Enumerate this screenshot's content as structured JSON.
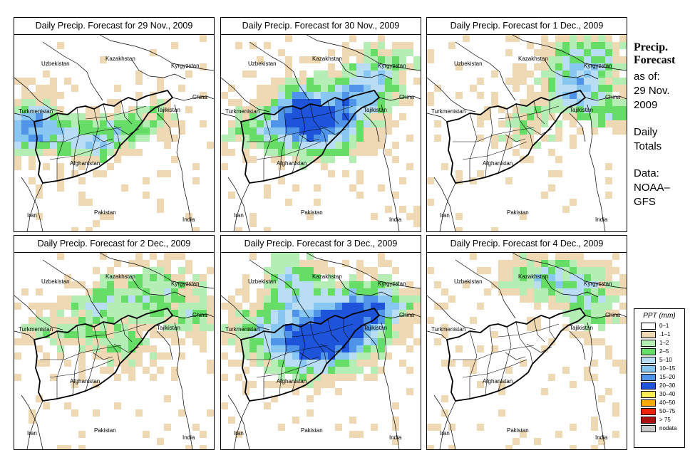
{
  "panels": [
    {
      "title": "Daily Precip. Forecast for  29 Nov., 2009",
      "pattern": "west"
    },
    {
      "title": "Daily Precip. Forecast for  30 Nov., 2009",
      "pattern": "central"
    },
    {
      "title": "Daily Precip. Forecast for  1 Dec., 2009",
      "pattern": "northeast"
    },
    {
      "title": "Daily Precip. Forecast for  2 Dec., 2009",
      "pattern": "north-light"
    },
    {
      "title": "Daily Precip. Forecast for  3 Dec., 2009",
      "pattern": "central-heavy"
    },
    {
      "title": "Daily Precip. Forecast for  4 Dec., 2009",
      "pattern": "northeast-light"
    }
  ],
  "map_labels": {
    "uzbekistan": "Uzbekistan",
    "kazakhstan": "Kazakhstan",
    "kyrgyzstan": "Kyrgyzstan",
    "china": "China",
    "tajikistan": "Tajikistan",
    "turkmenistan": "Turkmenistan",
    "afghanistan": "Afghanistan",
    "iran": "Iran",
    "pakistan": "Pakistan",
    "india": "India"
  },
  "side": {
    "title_line1": "Precip.",
    "title_line2": "Forecast",
    "asof_line1": "as of:",
    "asof_line2": "29 Nov.",
    "asof_line3": "2009",
    "totals_line1": "Daily",
    "totals_line2": "Totals",
    "data_line1": "Data:",
    "data_line2": "NOAA–",
    "data_line3": "GFS"
  },
  "legend": {
    "title": "PPT (mm)",
    "items": [
      {
        "label": "0–1",
        "color": "#ffffff"
      },
      {
        "label": ".1–1",
        "color": "#efd9b4"
      },
      {
        "label": "1–2",
        "color": "#b4eeb4"
      },
      {
        "label": "2–5",
        "color": "#66dd66"
      },
      {
        "label": "5–10",
        "color": "#b8ddf5"
      },
      {
        "label": "10–15",
        "color": "#87c7f2"
      },
      {
        "label": "15–20",
        "color": "#4f94e8"
      },
      {
        "label": "20–30",
        "color": "#1e54d9"
      },
      {
        "label": "30–40",
        "color": "#ffee55"
      },
      {
        "label": "40–50",
        "color": "#ffaa00"
      },
      {
        "label": "50–75",
        "color": "#ee2200"
      },
      {
        "label": "> 75",
        "color": "#aa1111"
      },
      {
        "label": "nodata",
        "color": "#cccccc"
      }
    ]
  }
}
